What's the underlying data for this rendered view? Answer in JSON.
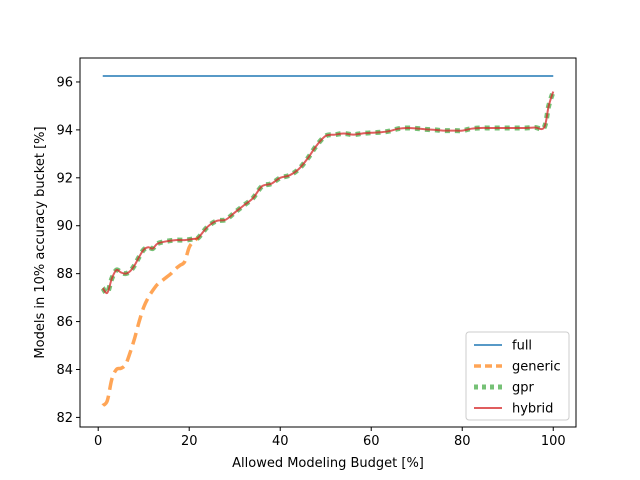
{
  "chart_data": {
    "type": "line",
    "title": "",
    "xlabel": "Allowed Modeling Budget [%]",
    "ylabel": "Models in 10% accuracy bucket [%]",
    "xlim": [
      -4,
      105
    ],
    "ylim": [
      81.6,
      97.0
    ],
    "xticks": [
      0,
      20,
      40,
      60,
      80,
      100
    ],
    "yticks": [
      82,
      84,
      86,
      88,
      90,
      92,
      94,
      96
    ],
    "grid": false,
    "legend_position": "lower right",
    "series": [
      {
        "name": "full",
        "color": "#1f77b4",
        "style": "solid",
        "x": [
          1,
          100
        ],
        "y": [
          96.25,
          96.25
        ]
      },
      {
        "name": "generic",
        "color": "#ff7f0e",
        "style": "dashed",
        "x": [
          1,
          2,
          3,
          4,
          5,
          6,
          7,
          8,
          9,
          10,
          11,
          12,
          13,
          14,
          15,
          16,
          17,
          18,
          19,
          20,
          21,
          22
        ],
        "y": [
          82.5,
          82.7,
          83.6,
          84.0,
          84.05,
          84.2,
          84.7,
          85.3,
          86.0,
          86.6,
          87.0,
          87.3,
          87.55,
          87.7,
          87.85,
          88.0,
          88.2,
          88.35,
          88.5,
          89.1,
          89.35,
          89.5
        ]
      },
      {
        "name": "gpr",
        "color": "#2ca02c",
        "style": "dotted",
        "x": [
          1,
          2,
          3,
          4,
          5,
          6,
          7,
          8,
          9,
          10,
          11,
          12,
          13,
          15,
          17,
          19,
          21,
          22,
          24,
          26,
          28,
          30,
          32,
          34,
          36,
          38,
          40,
          42,
          44,
          46,
          48,
          50,
          52,
          54,
          56,
          58,
          60,
          62,
          64,
          66,
          68,
          70,
          72,
          74,
          76,
          78,
          80,
          82,
          84,
          86,
          88,
          90,
          92,
          94,
          96,
          98,
          99,
          100
        ],
        "y": [
          87.4,
          87.2,
          87.8,
          88.15,
          88.05,
          88.0,
          88.1,
          88.35,
          88.7,
          89.0,
          89.1,
          89.05,
          89.25,
          89.35,
          89.4,
          89.4,
          89.45,
          89.5,
          89.95,
          90.2,
          90.25,
          90.55,
          90.85,
          91.15,
          91.65,
          91.75,
          92.0,
          92.1,
          92.35,
          92.8,
          93.35,
          93.75,
          93.8,
          93.85,
          93.8,
          93.85,
          93.88,
          93.9,
          93.95,
          94.05,
          94.08,
          94.06,
          94.02,
          94.0,
          93.97,
          93.97,
          93.97,
          94.05,
          94.08,
          94.08,
          94.08,
          94.08,
          94.08,
          94.08,
          94.1,
          94.1,
          95.0,
          95.6
        ]
      },
      {
        "name": "hybrid",
        "color": "#d62728",
        "style": "solid",
        "x": [
          1,
          2,
          3,
          4,
          5,
          6,
          7,
          8,
          9,
          10,
          11,
          12,
          13,
          15,
          17,
          19,
          21,
          22,
          24,
          26,
          28,
          30,
          32,
          34,
          36,
          38,
          40,
          42,
          44,
          46,
          48,
          50,
          52,
          54,
          56,
          58,
          60,
          62,
          64,
          66,
          68,
          70,
          72,
          74,
          76,
          78,
          80,
          82,
          84,
          86,
          88,
          90,
          92,
          94,
          96,
          98,
          99,
          100
        ],
        "y": [
          87.4,
          87.2,
          87.8,
          88.15,
          88.05,
          88.0,
          88.1,
          88.35,
          88.7,
          89.0,
          89.1,
          89.05,
          89.25,
          89.35,
          89.4,
          89.4,
          89.45,
          89.5,
          89.95,
          90.2,
          90.25,
          90.55,
          90.85,
          91.15,
          91.65,
          91.75,
          92.0,
          92.1,
          92.35,
          92.8,
          93.35,
          93.75,
          93.8,
          93.85,
          93.8,
          93.85,
          93.88,
          93.9,
          93.95,
          94.05,
          94.08,
          94.06,
          94.02,
          94.0,
          93.97,
          93.97,
          93.97,
          94.05,
          94.08,
          94.08,
          94.08,
          94.08,
          94.08,
          94.08,
          94.1,
          94.1,
          95.0,
          95.6
        ]
      }
    ]
  }
}
